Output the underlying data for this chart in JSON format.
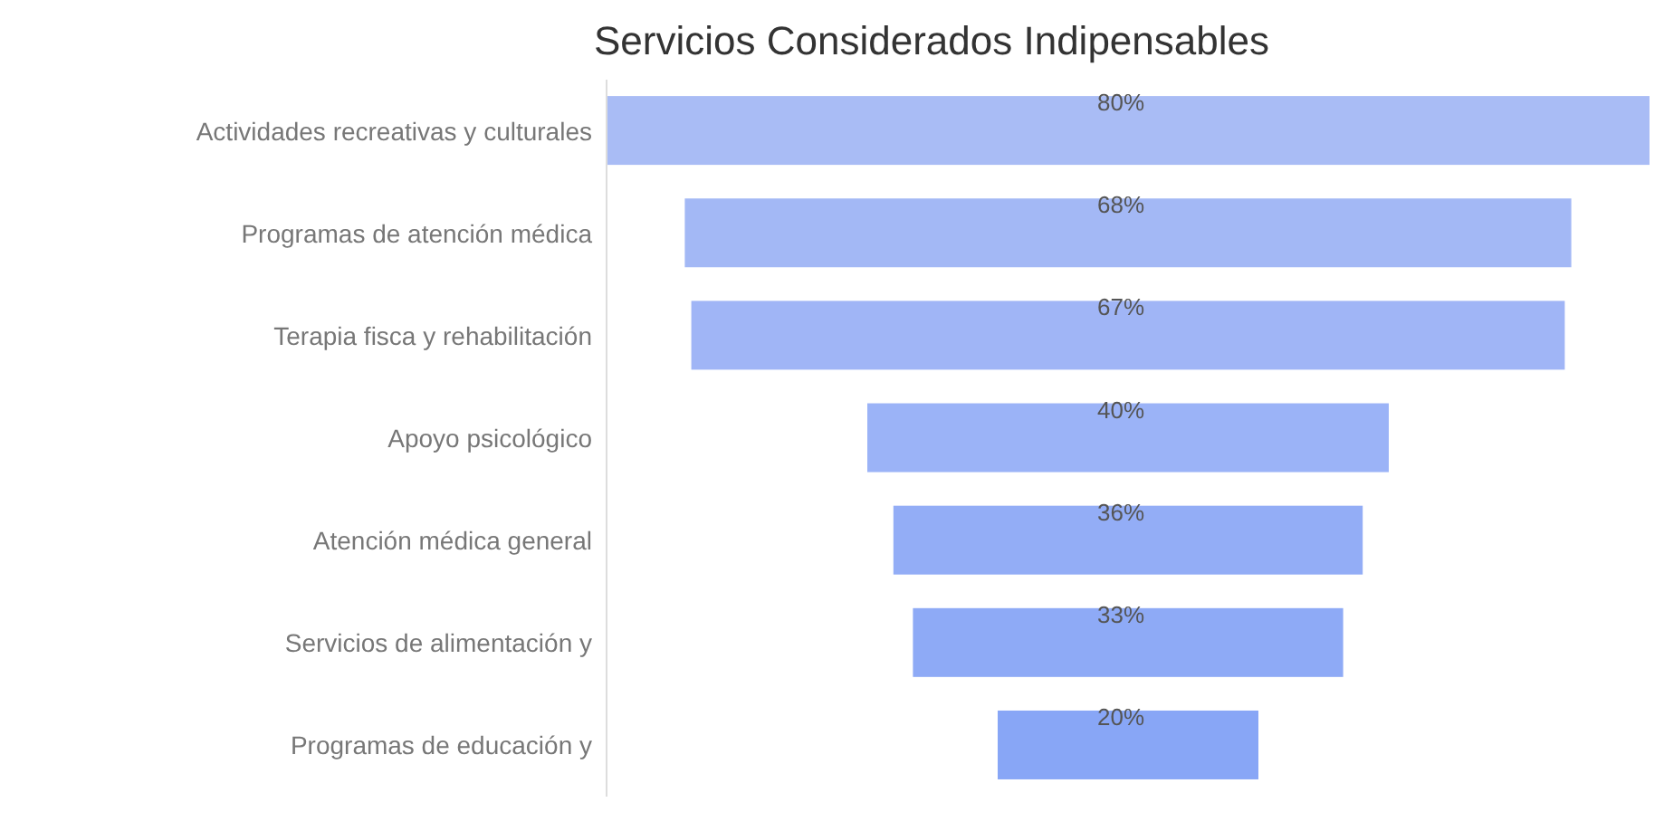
{
  "chart_data": {
    "type": "other",
    "title": "Servicios Considerados Indipensables",
    "categories": [
      "Actividades recreativas y culturales",
      "Programas de atención médica",
      "Terapia fisca y rehabilitación",
      "Apoyo psicológico",
      "Atención médica general",
      "Servicios de alimentación y",
      "Programas de educación y"
    ],
    "values": [
      80,
      68,
      67,
      40,
      36,
      33,
      20
    ],
    "value_labels": [
      "80%",
      "68%",
      "67%",
      "40%",
      "36%",
      "33%",
      "20%"
    ],
    "colors": [
      "#a9bcf5",
      "#a3b8f5",
      "#a0b5f6",
      "#9bb3f7",
      "#93adf6",
      "#8eaaf6",
      "#88a6f6"
    ]
  }
}
